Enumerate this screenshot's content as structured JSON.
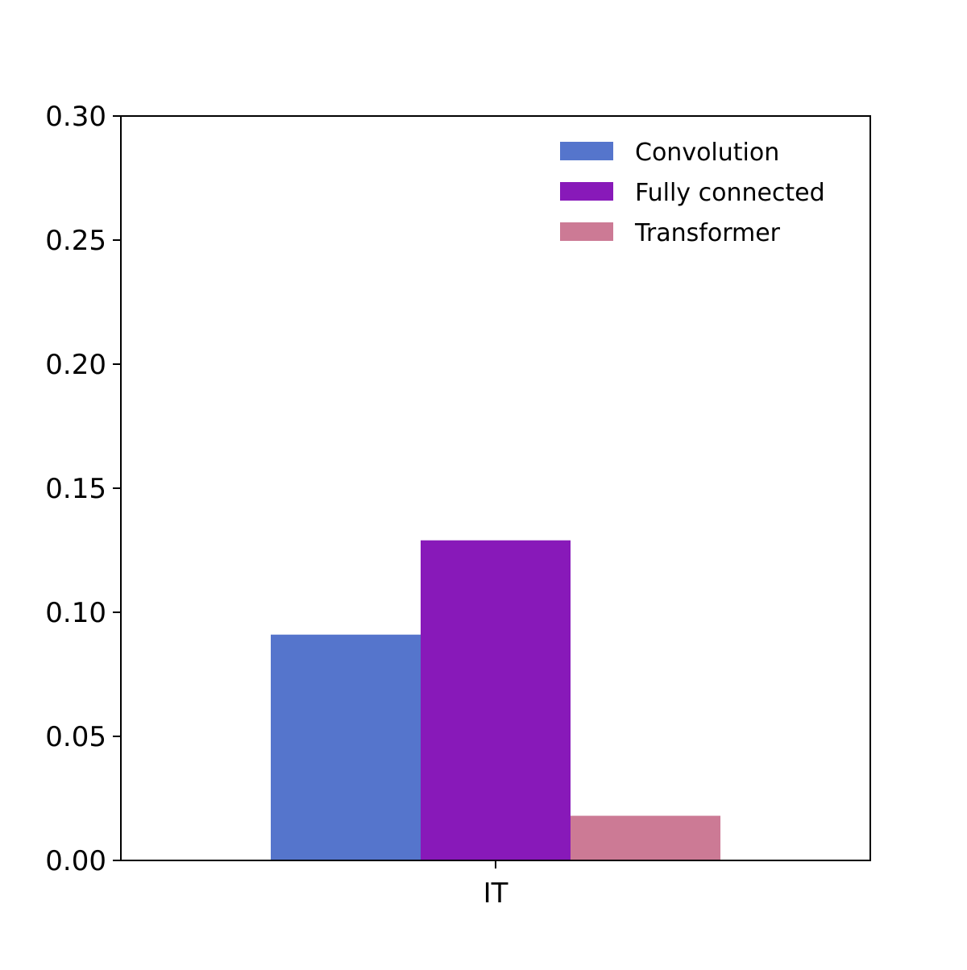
{
  "chart_data": {
    "type": "bar",
    "title": "",
    "xlabel": "",
    "ylabel": "",
    "categories": [
      "IT"
    ],
    "series": [
      {
        "name": "Convolution",
        "values": [
          0.091
        ],
        "color": "#5575CC"
      },
      {
        "name": "Fully connected",
        "values": [
          0.129
        ],
        "color": "#8819B9"
      },
      {
        "name": "Transformer",
        "values": [
          0.018
        ],
        "color": "#CC7A95"
      }
    ],
    "ylim": [
      0,
      0.3
    ],
    "yticks": [
      "0.00",
      "0.05",
      "0.10",
      "0.15",
      "0.20",
      "0.25",
      "0.30"
    ],
    "grid": false,
    "legend_position": "top-right"
  }
}
